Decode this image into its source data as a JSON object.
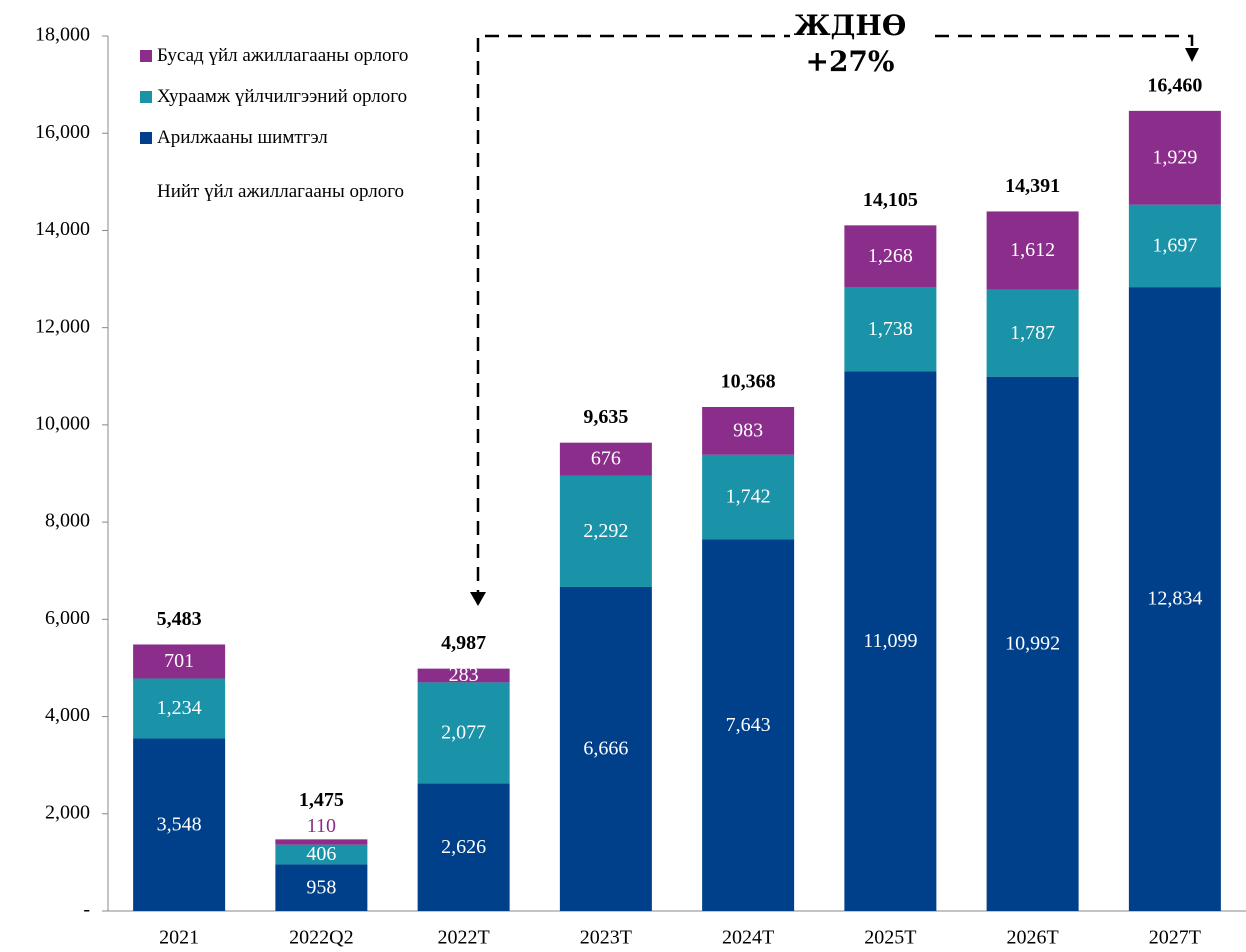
{
  "chart_data": {
    "type": "bar",
    "stacked": true,
    "categories": [
      "2021",
      "2022Q2",
      "2022T",
      "2023T",
      "2024T",
      "2025T",
      "2026T",
      "2027T"
    ],
    "series": [
      {
        "name": "Арилжааны шимтгэл",
        "color": "#00408a",
        "values": [
          3548,
          958,
          2626,
          6666,
          7643,
          11099,
          10992,
          12834
        ],
        "value_labels": [
          "3,548",
          "958",
          "2,626",
          "6,666",
          "7,643",
          "11,099",
          "10,992",
          "12,834"
        ]
      },
      {
        "name": "Хураамж үйлчилгээний орлого",
        "color": "#1a92a8",
        "values": [
          1234,
          406,
          2077,
          2292,
          1742,
          1738,
          1787,
          1697
        ],
        "value_labels": [
          "1,234",
          "406",
          "2,077",
          "2,292",
          "1,742",
          "1,738",
          "1,787",
          "1,697"
        ]
      },
      {
        "name": "Бусад үйл ажиллагааны орлого",
        "color": "#8b2d8a",
        "values": [
          701,
          110,
          283,
          676,
          983,
          1268,
          1612,
          1929
        ],
        "value_labels": [
          "701",
          "110",
          "283",
          "676",
          "983",
          "1,268",
          "1,612",
          "1,929"
        ]
      }
    ],
    "totals": {
      "name": "Нийт үйл ажиллагааны орлого",
      "values": [
        5483,
        1475,
        4987,
        9635,
        10368,
        14105,
        14391,
        16460
      ],
      "value_labels": [
        "5,483",
        "1,475",
        "4,987",
        "9,635",
        "10,368",
        "14,105",
        "14,391",
        "16,460"
      ]
    },
    "annotation": [
      "ЖДНӨ",
      "+27%"
    ],
    "ylim": [
      0,
      18000
    ],
    "yticks": [
      {
        "value": 0,
        "label": "-"
      },
      {
        "value": 2000,
        "label": "2,000"
      },
      {
        "value": 4000,
        "label": "4,000"
      },
      {
        "value": 6000,
        "label": "6,000"
      },
      {
        "value": 8000,
        "label": "8,000"
      },
      {
        "value": 10000,
        "label": "10,000"
      },
      {
        "value": 12000,
        "label": "12,000"
      },
      {
        "value": 14000,
        "label": "14,000"
      },
      {
        "value": 16000,
        "label": "16,000"
      },
      {
        "value": 18000,
        "label": "18,000"
      }
    ],
    "grid": false
  }
}
